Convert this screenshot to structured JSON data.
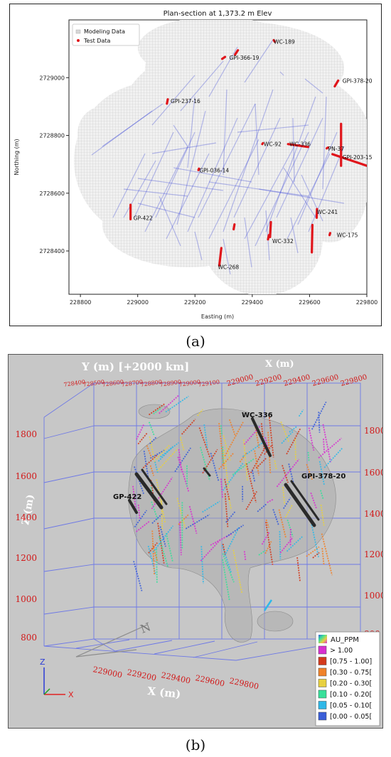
{
  "captions": {
    "a": "(a)",
    "b": "(b)"
  },
  "chart_data": [
    {
      "type": "scatter",
      "title": "Plan-section at 1,373.2 m Elev",
      "xlabel": "Easting (m)",
      "ylabel": "Northing (m)",
      "xlim": [
        228760,
        229800
      ],
      "ylim": [
        2728250,
        2729200
      ],
      "xticks": [
        228800,
        229000,
        229200,
        229400,
        229600,
        229800
      ],
      "yticks": [
        2728400,
        2728600,
        2728800,
        2729000
      ],
      "legend": {
        "placement": "top-left",
        "entries": [
          "Modeling Data",
          "Test Data"
        ]
      },
      "colors": {
        "modeling": "#b7b7b7",
        "test": "#e0151b",
        "traces": "#3c49d8"
      },
      "grid": false,
      "labels": [
        {
          "name": "WC-189",
          "x": 229475,
          "y": 2729125
        },
        {
          "name": "GPI-366-19",
          "x": 229320,
          "y": 2729070
        },
        {
          "name": "GPI-378-20",
          "x": 229715,
          "y": 2728990
        },
        {
          "name": "GPI-237-16",
          "x": 229115,
          "y": 2728920
        },
        {
          "name": "WC-92",
          "x": 229440,
          "y": 2728770
        },
        {
          "name": "WC-336",
          "x": 229530,
          "y": 2728770
        },
        {
          "name": "PN-37",
          "x": 229665,
          "y": 2728755
        },
        {
          "name": "GPI-203-15",
          "x": 229715,
          "y": 2728725
        },
        {
          "name": "GPI-036-14",
          "x": 229215,
          "y": 2728680
        },
        {
          "name": "WC-241",
          "x": 229625,
          "y": 2728535
        },
        {
          "name": "GP-422",
          "x": 228985,
          "y": 2728515
        },
        {
          "name": "WC-175",
          "x": 229695,
          "y": 2728455
        },
        {
          "name": "WC-332",
          "x": 229470,
          "y": 2728435
        },
        {
          "name": "WC-268",
          "x": 229280,
          "y": 2728345
        }
      ],
      "test_segments": [
        [
          229475,
          2729130,
          229478,
          2729125
        ],
        [
          229340,
          2729080,
          229350,
          2729095
        ],
        [
          229295,
          2729065,
          229305,
          2729072
        ],
        [
          229688,
          2728970,
          229700,
          2728990
        ],
        [
          229102,
          2728910,
          229105,
          2728925
        ],
        [
          229435,
          2728770,
          229437,
          2728773
        ],
        [
          229525,
          2728770,
          229595,
          2728760
        ],
        [
          229660,
          2728755,
          229664,
          2728758
        ],
        [
          229710,
          2728840,
          229710,
          2728695
        ],
        [
          229680,
          2728735,
          229800,
          2728695
        ],
        [
          229212,
          2728680,
          229214,
          2728685
        ],
        [
          228975,
          2728510,
          228975,
          2728560
        ],
        [
          229625,
          2728515,
          229626,
          2728545
        ],
        [
          229608,
          2728395,
          229610,
          2728490
        ],
        [
          229670,
          2728455,
          229672,
          2728462
        ],
        [
          229462,
          2728448,
          229465,
          2728500
        ],
        [
          229455,
          2728440,
          229458,
          2728455
        ],
        [
          229335,
          2728475,
          229338,
          2728492
        ],
        [
          229285,
          2728350,
          229292,
          2728410
        ]
      ]
    },
    {
      "type": "scatter",
      "title": "",
      "axis_labels": {
        "y": "Y (m) [+2000 km]",
        "x_top": "X (m)",
        "x": "X (m)",
        "z": "Z (m)"
      },
      "y_ticks": [
        "728400",
        "728500",
        "728600",
        "728700",
        "728800",
        "728900",
        "729000",
        "729100"
      ],
      "x_top_ticks": [
        "229000",
        "229200",
        "229400",
        "229600",
        "229800"
      ],
      "x_ticks": [
        "229000",
        "229200",
        "229400",
        "229600",
        "229800"
      ],
      "z_ticks": [
        "800",
        "1000",
        "1200",
        "1400",
        "1600",
        "1800"
      ],
      "holes": [
        "WC-336",
        "GPI-378-20",
        "GP-422"
      ],
      "legend": {
        "title": "AU_PPM",
        "placement": "bottom-right",
        "entries": [
          {
            "label": "> 1.00",
            "color": "#d830d0"
          },
          {
            "label": "[0.75 - 1.00]",
            "color": "#d33a1c"
          },
          {
            "label": "[0.30 - 0.75[",
            "color": "#f0822a"
          },
          {
            "label": "[0.20 - 0.30[",
            "color": "#e8d040"
          },
          {
            "label": "[0.10 - 0.20[",
            "color": "#38e09a"
          },
          {
            "label": "[0.05 - 0.10[",
            "color": "#2fb8e8"
          },
          {
            "label": "[0.00 - 0.05[",
            "color": "#3a5ed8"
          }
        ]
      },
      "axis_triad": {
        "z": "Z",
        "y": "Y",
        "x": "X"
      },
      "compass": "N"
    }
  ]
}
